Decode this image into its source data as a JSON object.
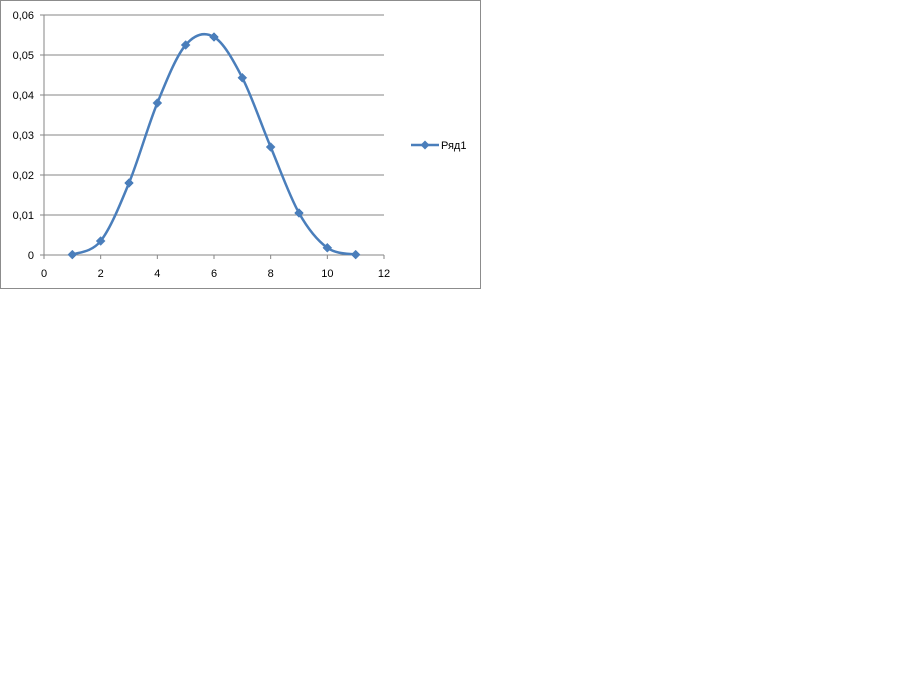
{
  "chart_data": {
    "type": "line",
    "title": "",
    "xlabel": "",
    "ylabel": "",
    "xlim": [
      0,
      12
    ],
    "ylim": [
      0,
      0.06
    ],
    "x_ticks": [
      0,
      2,
      4,
      6,
      8,
      10,
      12
    ],
    "x_tick_labels": [
      "0",
      "2",
      "4",
      "6",
      "8",
      "10",
      "12"
    ],
    "y_ticks": [
      0,
      0.01,
      0.02,
      0.03,
      0.04,
      0.05,
      0.06
    ],
    "y_tick_labels": [
      "0",
      "0,01",
      "0,02",
      "0,03",
      "0,04",
      "0,05",
      "0,06"
    ],
    "grid": "horizontal",
    "legend_position": "right",
    "smooth": true,
    "marker": "diamond",
    "series": [
      {
        "name": "Ряд1",
        "color": "#4a7ebb",
        "x": [
          1,
          2,
          3,
          4,
          5,
          6,
          7,
          8,
          9,
          10,
          11
        ],
        "y": [
          0.0001,
          0.0035,
          0.018,
          0.038,
          0.0525,
          0.0545,
          0.0443,
          0.027,
          0.0105,
          0.0018,
          0.0001
        ]
      }
    ]
  }
}
